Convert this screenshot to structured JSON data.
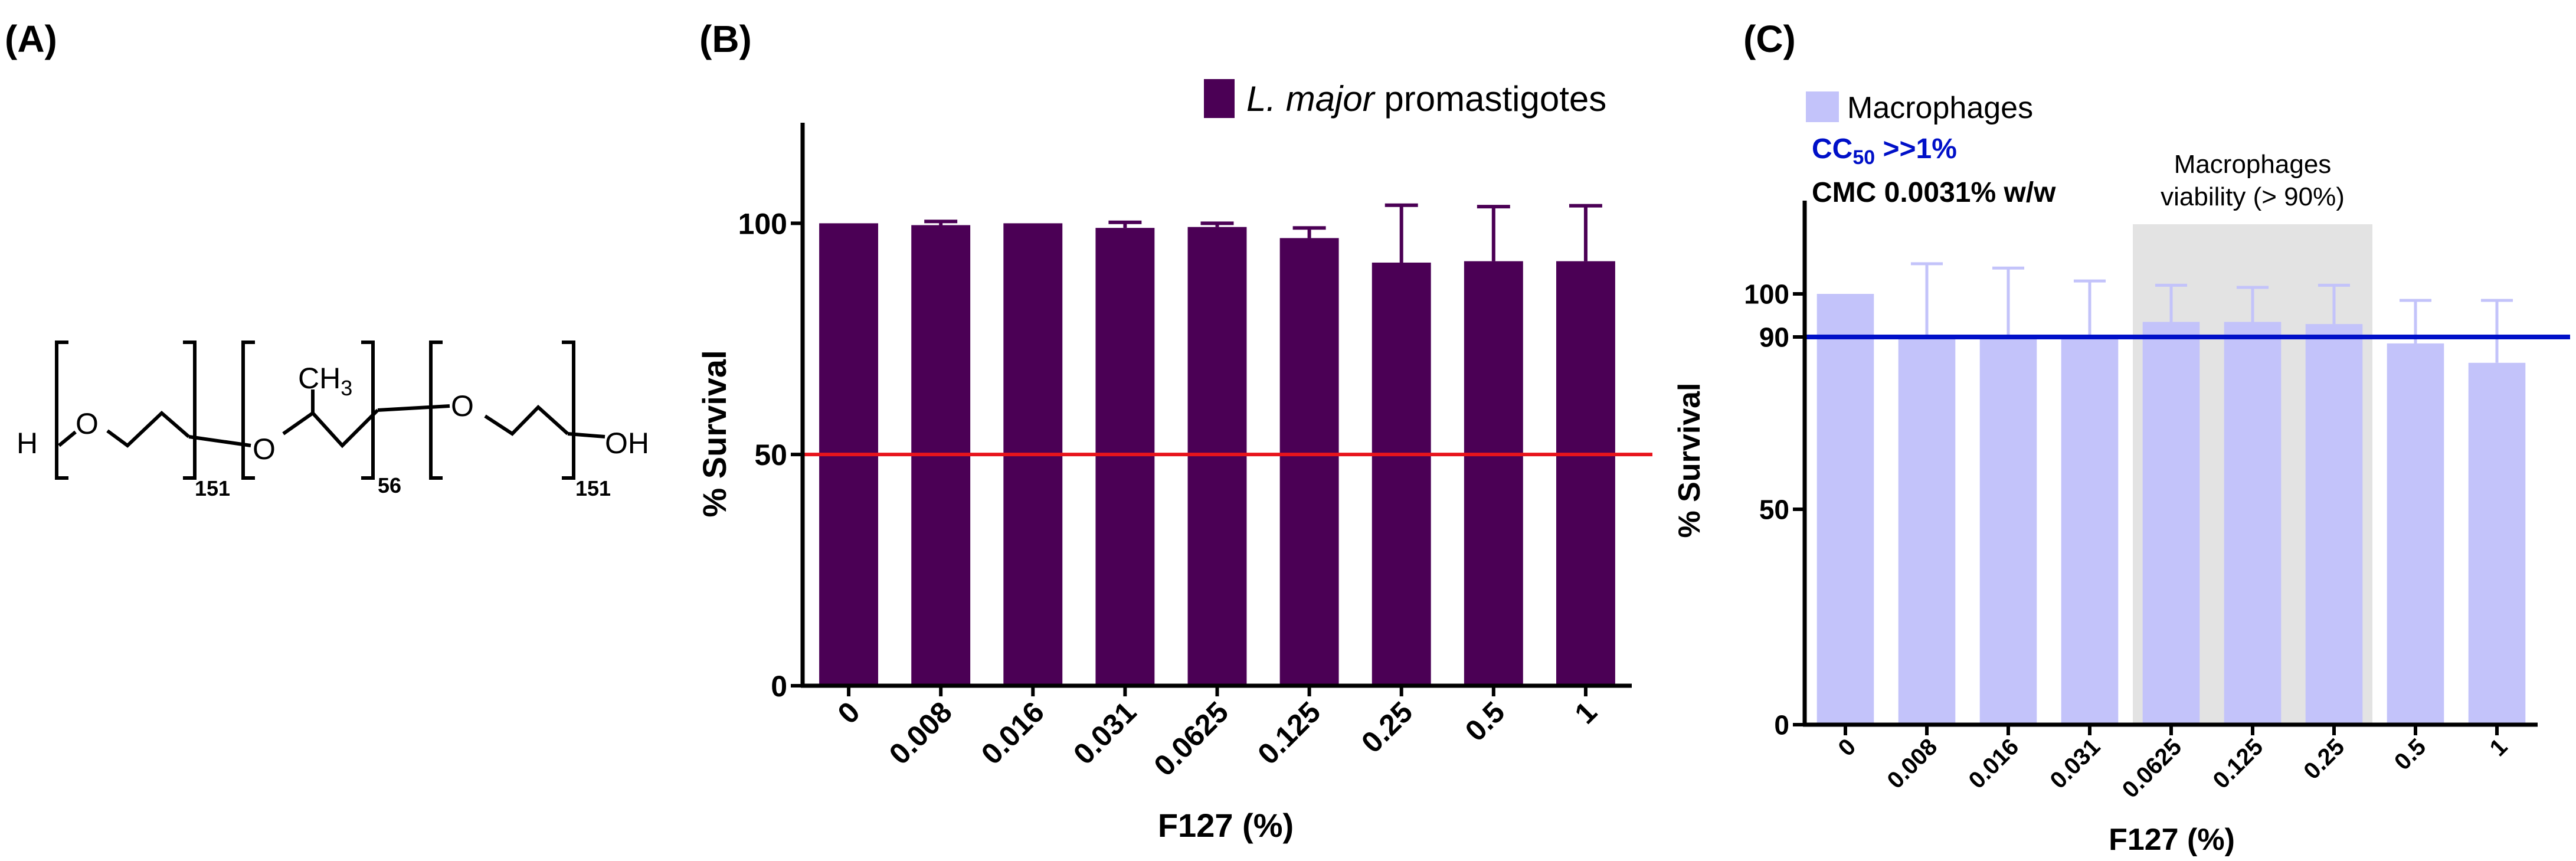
{
  "panel_a": {
    "label": "(A)",
    "structure": {
      "h": "H",
      "o1": "O",
      "o2": "O",
      "o3": "O",
      "ch3": "CH",
      "ch3_sub": "3",
      "oh": "OH",
      "n1": "151",
      "n2": "56",
      "n3": "151"
    }
  },
  "chart_data": [
    {
      "panel": "(B)",
      "type": "bar",
      "categories": [
        "0",
        "0.008",
        "0.016",
        "0.031",
        "0.0625",
        "0.125",
        "0.25",
        "0.5",
        "1"
      ],
      "series": [
        {
          "name": "L. major promastigotes",
          "name_italic": "L. major",
          "name_rest": " promastigotes",
          "values": [
            100,
            99.6,
            100,
            99,
            99.2,
            96.8,
            91.5,
            91.8,
            91.8
          ],
          "errors": [
            0,
            0.8,
            0,
            1.2,
            0.8,
            2.2,
            12.4,
            11.8,
            12
          ]
        }
      ],
      "xlabel": "F127 (%)",
      "ylabel": "% Survival",
      "ylim": [
        0,
        110
      ],
      "yticks": [
        0,
        50,
        100
      ],
      "reference_line": 50,
      "bar_color": "#4b0055",
      "line_color": "#e8141c",
      "legend_position": "top-right",
      "grid": false
    },
    {
      "panel": "(C)",
      "type": "bar",
      "categories": [
        "0",
        "0.008",
        "0.016",
        "0.031",
        "0.0625",
        "0.125",
        "0.25",
        "0.5",
        "1"
      ],
      "series": [
        {
          "name": "Macrophages",
          "values": [
            100,
            90.5,
            90.5,
            90.5,
            93.5,
            93.5,
            93,
            88.5,
            84
          ],
          "errors": [
            0,
            16.5,
            15.5,
            12.5,
            8.5,
            8,
            9,
            10,
            14.5
          ]
        }
      ],
      "xlabel": "F127 (%)",
      "ylabel": "% Survival",
      "ylim": [
        0,
        110
      ],
      "yticks": [
        0,
        50,
        90,
        100
      ],
      "reference_line": 90,
      "highlight_region": {
        "from_category": "0.0625",
        "to_category": "0.25",
        "label_line1": "Macrophages",
        "label_line2": "viability (> 90%)"
      },
      "annotations": {
        "cc50_main": "CC",
        "cc50_sub": "50",
        "cc50_rest": " >>1%",
        "cmc": "CMC 0.0031% w/w"
      },
      "bar_color": "#c3c3fa",
      "line_color": "#0010c8",
      "annotation_color": "#0010c8",
      "highlight_color": "#e3e3e3",
      "legend_position": "top-left",
      "grid": false
    }
  ]
}
